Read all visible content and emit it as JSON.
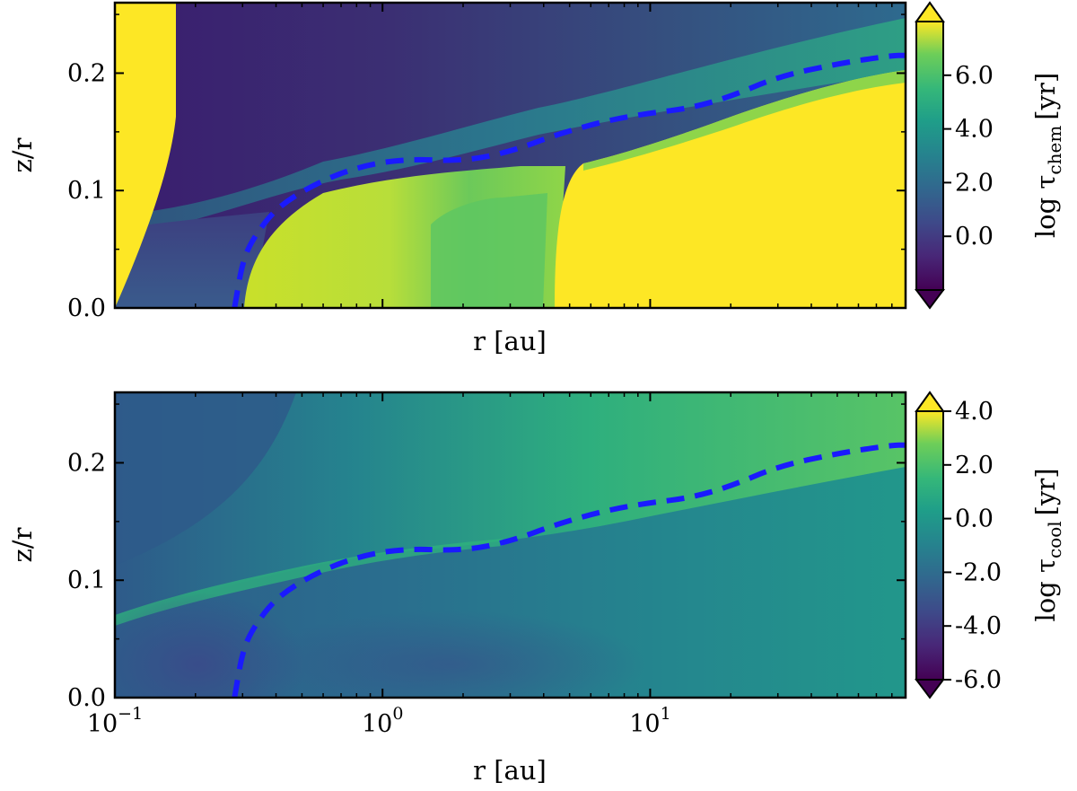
{
  "chart_data": [
    {
      "type": "heatmap",
      "panel": "top",
      "xlabel": "r [au]",
      "ylabel": "z/r",
      "xscale": "log",
      "xlim": [
        0.1,
        90
      ],
      "ylim": [
        0.0,
        0.26
      ],
      "xticks": [],
      "yticks": [
        {
          "value": 0.0,
          "label": "0.0"
        },
        {
          "value": 0.1,
          "label": "0.1"
        },
        {
          "value": 0.2,
          "label": "0.2"
        }
      ],
      "colorbar": {
        "label_main": "log τ",
        "label_sub": "chem",
        "label_unit": "[yr]",
        "range": [
          -2.0,
          8.0
        ],
        "extend": "both",
        "ticks": [
          {
            "value": 0.0,
            "label": "0.0"
          },
          {
            "value": 2.0,
            "label": "2.0"
          },
          {
            "value": 4.0,
            "label": "4.0"
          },
          {
            "value": 6.0,
            "label": "6.0"
          }
        ]
      },
      "colormap": "viridis",
      "contour_color": "#1a1aff"
    },
    {
      "type": "heatmap",
      "panel": "bottom",
      "xlabel": "r [au]",
      "ylabel": "z/r",
      "xscale": "log",
      "xlim": [
        0.1,
        90
      ],
      "ylim": [
        0.0,
        0.26
      ],
      "xticks": [
        {
          "value": 0.1,
          "base": "10",
          "exp": "−1"
        },
        {
          "value": 1,
          "base": "10",
          "exp": "0"
        },
        {
          "value": 10,
          "base": "10",
          "exp": "1"
        }
      ],
      "yticks": [
        {
          "value": 0.0,
          "label": "0.0"
        },
        {
          "value": 0.1,
          "label": "0.1"
        },
        {
          "value": 0.2,
          "label": "0.2"
        }
      ],
      "colorbar": {
        "label_main": "log τ",
        "label_sub": "cool",
        "label_unit": "[yr]",
        "range": [
          -6.0,
          4.0
        ],
        "extend": "both",
        "ticks": [
          {
            "value": -6.0,
            "label": "-6.0"
          },
          {
            "value": -4.0,
            "label": "-4.0"
          },
          {
            "value": -2.0,
            "label": "-2.0"
          },
          {
            "value": 0.0,
            "label": "0.0"
          },
          {
            "value": 2.0,
            "label": "2.0"
          },
          {
            "value": 4.0,
            "label": "4.0"
          }
        ]
      },
      "colormap": "viridis",
      "contour_color": "#1a1aff"
    }
  ],
  "boundary_line": {
    "style": "dashed",
    "color": "#1a1aff",
    "points": [
      [
        0.28,
        0.0
      ],
      [
        0.3,
        0.04
      ],
      [
        0.33,
        0.06
      ],
      [
        0.4,
        0.085
      ],
      [
        0.55,
        0.105
      ],
      [
        0.8,
        0.12
      ],
      [
        1.2,
        0.127
      ],
      [
        2.0,
        0.125
      ],
      [
        3.0,
        0.133
      ],
      [
        4.5,
        0.148
      ],
      [
        7.0,
        0.16
      ],
      [
        10.0,
        0.166
      ],
      [
        14.0,
        0.17
      ],
      [
        20.0,
        0.18
      ],
      [
        30.0,
        0.197
      ],
      [
        50.0,
        0.208
      ],
      [
        80.0,
        0.215
      ],
      [
        90.0,
        0.215
      ]
    ]
  }
}
